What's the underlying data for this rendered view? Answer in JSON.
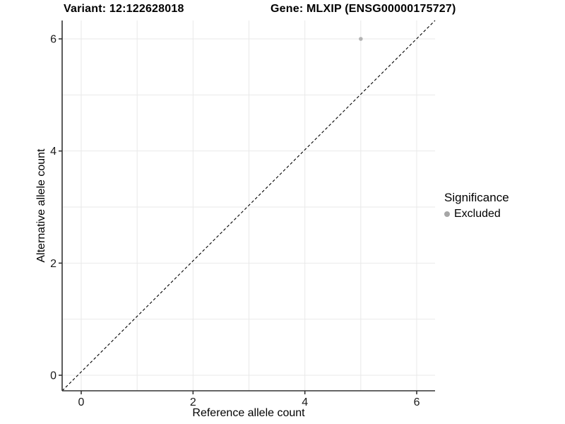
{
  "header": {
    "variant_title": "Variant: 12:122628018",
    "gene_title": "Gene: MLXIP (ENSG00000175727)"
  },
  "chart_data": {
    "type": "scatter",
    "titles": [
      "Variant: 12:122628018",
      "Gene: MLXIP (ENSG00000175727)"
    ],
    "xlabel": "Reference allele count",
    "ylabel": "Alternative allele count",
    "xlim": [
      -0.34,
      6.33
    ],
    "ylim": [
      -0.34,
      6.33
    ],
    "x_ticks": [
      0,
      2,
      4,
      6
    ],
    "y_ticks": [
      0,
      2,
      4,
      6
    ],
    "grid_values": [
      0,
      1,
      2,
      3,
      4,
      5,
      6
    ],
    "grid": true,
    "reference_line": {
      "type": "identity y=x",
      "style": "dashed",
      "color": "#000000"
    },
    "series": [
      {
        "name": "Excluded",
        "color": "#b3b3b3",
        "points": [
          {
            "x": 5,
            "y": 6
          }
        ]
      }
    ],
    "legend": {
      "title": "Significance",
      "position": "right",
      "items": [
        {
          "label": "Excluded",
          "color": "#a6a6a6"
        }
      ]
    },
    "style": {
      "grid_color": "#e9e9e9",
      "axis_color": "#333333",
      "tick_label_color": "#1a1a1a",
      "background": "#ffffff"
    }
  }
}
